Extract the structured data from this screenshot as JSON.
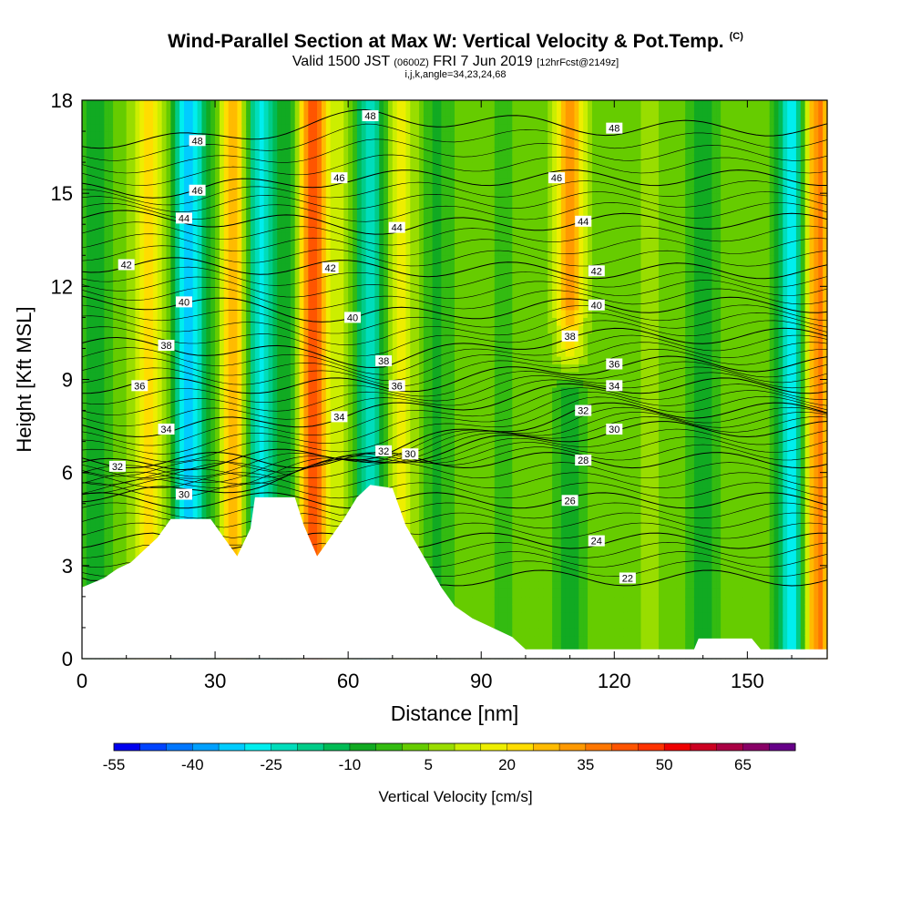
{
  "header": {
    "title": "Wind-Parallel Section at Max W: Vertical Velocity & Pot.Temp.",
    "copyright": "(C)",
    "valid_prefix": "Valid 1500 JST",
    "valid_utc": "(0600Z)",
    "valid_date": "FRI 7 Jun 2019",
    "forecast": "[12hrFcst@2149z]",
    "indices": "i,j,k,angle=34,23,24,68"
  },
  "chart_data": {
    "type": "heatmap",
    "title": "Wind-Parallel Section at Max W: Vertical Velocity & Pot.Temp.",
    "xlabel": "Distance [nm]",
    "ylabel": "Height [Kft MSL]",
    "xlim": [
      0,
      168
    ],
    "ylim": [
      0,
      18
    ],
    "x_ticks": [
      "0",
      "30",
      "60",
      "90",
      "120",
      "150"
    ],
    "y_ticks": [
      "0",
      "3",
      "6",
      "9",
      "12",
      "15",
      "18"
    ],
    "colorbar": {
      "label": "Vertical Velocity [cm/s]",
      "tick_labels": [
        "-55",
        "-40",
        "-25",
        "-10",
        "5",
        "20",
        "35",
        "50",
        "65"
      ],
      "levels": [
        -55,
        -50,
        -45,
        -40,
        -35,
        -30,
        -25,
        -20,
        -15,
        -10,
        -5,
        0,
        5,
        10,
        15,
        20,
        25,
        30,
        35,
        40,
        45,
        50,
        55,
        60,
        65,
        70,
        75
      ],
      "colors": [
        "#0000ee",
        "#0044ff",
        "#0077ff",
        "#00a0ff",
        "#00ccff",
        "#00eeee",
        "#00ddbb",
        "#00cc88",
        "#00bb55",
        "#11aa22",
        "#33bb11",
        "#66cc00",
        "#99dd00",
        "#ccee00",
        "#eeee00",
        "#ffdd00",
        "#ffbb00",
        "#ff9900",
        "#ff7700",
        "#ff5500",
        "#ff3300",
        "#ee0000",
        "#cc0022",
        "#aa0044",
        "#880066",
        "#660088"
      ]
    },
    "terrain_kft": [
      [
        0,
        2.3
      ],
      [
        5,
        2.6
      ],
      [
        8,
        2.9
      ],
      [
        11,
        3.1
      ],
      [
        14,
        3.5
      ],
      [
        17,
        3.9
      ],
      [
        20,
        4.5
      ],
      [
        29,
        4.5
      ],
      [
        32,
        3.9
      ],
      [
        35,
        3.3
      ],
      [
        38,
        4.2
      ],
      [
        39,
        5.2
      ],
      [
        48,
        5.2
      ],
      [
        50,
        4.3
      ],
      [
        53,
        3.3
      ],
      [
        56,
        3.9
      ],
      [
        59,
        4.5
      ],
      [
        62,
        5.2
      ],
      [
        65,
        5.6
      ],
      [
        70,
        5.5
      ],
      [
        73,
        4.3
      ],
      [
        77,
        3.3
      ],
      [
        81,
        2.3
      ],
      [
        84,
        1.7
      ],
      [
        88,
        1.3
      ],
      [
        91,
        1.1
      ],
      [
        97,
        0.7
      ],
      [
        100,
        0.3
      ],
      [
        138,
        0.3
      ],
      [
        139,
        0.65
      ],
      [
        151,
        0.65
      ],
      [
        153,
        0.3
      ],
      [
        168,
        0.3
      ]
    ],
    "theta_contour_labels": [
      {
        "label": "48",
        "x": 26,
        "y": 16.7
      },
      {
        "label": "48",
        "x": 65,
        "y": 17.5
      },
      {
        "label": "48",
        "x": 120,
        "y": 17.1
      },
      {
        "label": "46",
        "x": 26,
        "y": 15.1
      },
      {
        "label": "46",
        "x": 58,
        "y": 15.5
      },
      {
        "label": "46",
        "x": 107,
        "y": 15.5
      },
      {
        "label": "44",
        "x": 23,
        "y": 14.2
      },
      {
        "label": "44",
        "x": 71,
        "y": 13.9
      },
      {
        "label": "44",
        "x": 113,
        "y": 14.1
      },
      {
        "label": "42",
        "x": 10,
        "y": 12.7
      },
      {
        "label": "42",
        "x": 56,
        "y": 12.6
      },
      {
        "label": "42",
        "x": 116,
        "y": 12.5
      },
      {
        "label": "40",
        "x": 23,
        "y": 11.5
      },
      {
        "label": "40",
        "x": 61,
        "y": 11.0
      },
      {
        "label": "40",
        "x": 116,
        "y": 11.4
      },
      {
        "label": "38",
        "x": 19,
        "y": 10.1
      },
      {
        "label": "38",
        "x": 68,
        "y": 9.6
      },
      {
        "label": "38",
        "x": 110,
        "y": 10.4
      },
      {
        "label": "36",
        "x": 13,
        "y": 8.8
      },
      {
        "label": "36",
        "x": 71,
        "y": 8.8
      },
      {
        "label": "36",
        "x": 120,
        "y": 9.5
      },
      {
        "label": "34",
        "x": 19,
        "y": 7.4
      },
      {
        "label": "34",
        "x": 58,
        "y": 7.8
      },
      {
        "label": "34",
        "x": 120,
        "y": 8.8
      },
      {
        "label": "32",
        "x": 8,
        "y": 6.2
      },
      {
        "label": "32",
        "x": 68,
        "y": 6.7
      },
      {
        "label": "32",
        "x": 113,
        "y": 8.0
      },
      {
        "label": "30",
        "x": 23,
        "y": 5.3
      },
      {
        "label": "30",
        "x": 74,
        "y": 6.6
      },
      {
        "label": "30",
        "x": 120,
        "y": 7.4
      },
      {
        "label": "28",
        "x": 113,
        "y": 6.4
      },
      {
        "label": "26",
        "x": 110,
        "y": 5.1
      },
      {
        "label": "24",
        "x": 116,
        "y": 3.8
      },
      {
        "label": "22",
        "x": 123,
        "y": 2.6
      }
    ],
    "velocity_features": [
      {
        "x": 3,
        "ymin": 0,
        "ymax": 18,
        "w": -12
      },
      {
        "x": 8,
        "ymin": 0,
        "ymax": 18,
        "w": 2
      },
      {
        "x": 15,
        "ymin": 0,
        "ymax": 18,
        "w": 22
      },
      {
        "x": 24,
        "ymin": 0,
        "ymax": 18,
        "w": -35
      },
      {
        "x": 29,
        "ymin": 0,
        "ymax": 18,
        "w": -8
      },
      {
        "x": 34,
        "ymin": 0,
        "ymax": 18,
        "w": 30
      },
      {
        "x": 40,
        "ymin": 0,
        "ymax": 18,
        "w": -28
      },
      {
        "x": 46,
        "ymin": 0,
        "ymax": 18,
        "w": -10
      },
      {
        "x": 52,
        "ymin": 0,
        "ymax": 18,
        "w": 40
      },
      {
        "x": 58,
        "ymin": 0,
        "ymax": 18,
        "w": 8
      },
      {
        "x": 65,
        "ymin": 0,
        "ymax": 18,
        "w": -25
      },
      {
        "x": 72,
        "ymin": 0,
        "ymax": 18,
        "w": 15
      },
      {
        "x": 80,
        "ymin": 0,
        "ymax": 18,
        "w": -8
      },
      {
        "x": 95,
        "ymin": 0,
        "ymax": 18,
        "w": -3
      },
      {
        "x": 110,
        "ymin": 10,
        "ymax": 18,
        "w": 30
      },
      {
        "x": 110,
        "ymin": 0,
        "ymax": 10,
        "w": -12
      },
      {
        "x": 128,
        "ymin": 0,
        "ymax": 18,
        "w": 5
      },
      {
        "x": 140,
        "ymin": 0,
        "ymax": 18,
        "w": -10
      },
      {
        "x": 150,
        "ymin": 0,
        "ymax": 18,
        "w": 2
      },
      {
        "x": 160,
        "ymin": 0,
        "ymax": 18,
        "w": -30
      },
      {
        "x": 166,
        "ymin": 0,
        "ymax": 18,
        "w": 35
      }
    ]
  }
}
